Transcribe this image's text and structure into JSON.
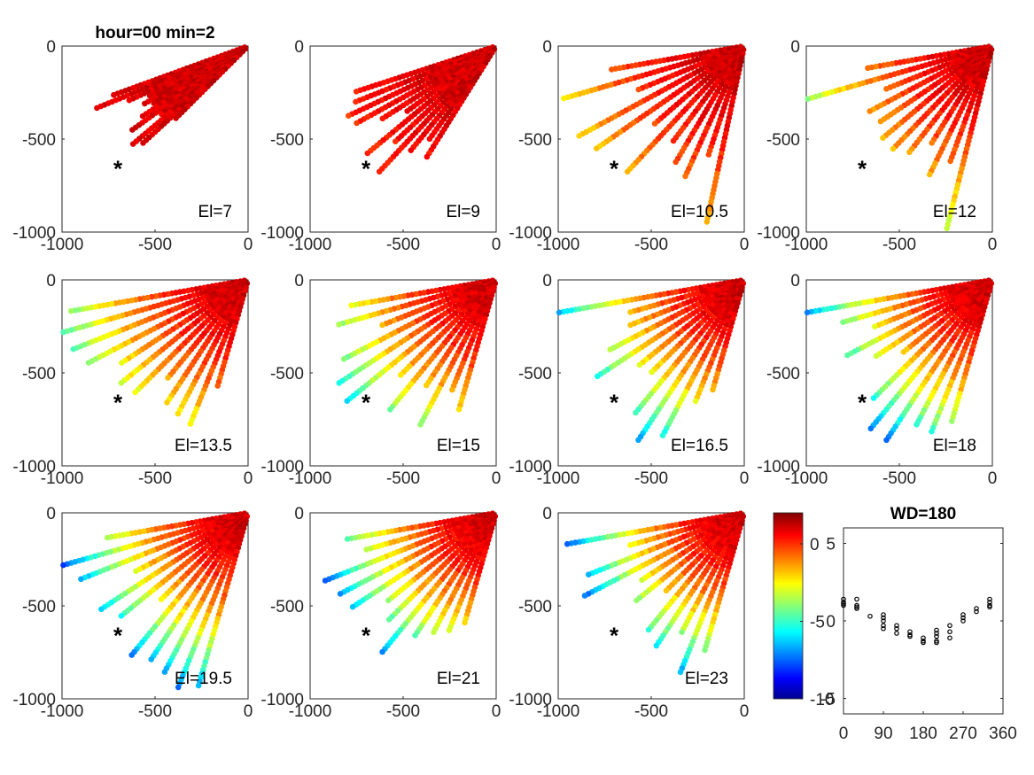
{
  "figure": {
    "title": "hour=00 min=2"
  },
  "chart_data": [
    {
      "type": "scatter",
      "description": "Radial scan scatter maps, one per elevation angle, colored by value",
      "xlim": [
        -1000,
        0
      ],
      "ylim": [
        -1000,
        0
      ],
      "xticks": [
        "-1000",
        "-500",
        "0"
      ],
      "yticks": [
        "0",
        "-500",
        "-1000"
      ],
      "marker": {
        "label": "*",
        "x": -700,
        "y": -660
      },
      "panels": [
        {
          "annotation": "El=7",
          "elevation": 7,
          "max_range": 860,
          "angle_span": [
            20,
            45
          ],
          "gradient": 0.05
        },
        {
          "annotation": "El=9",
          "elevation": 9,
          "max_range": 1000,
          "angle_span": [
            18,
            58
          ],
          "gradient": 0.15
        },
        {
          "annotation": "El=10.5",
          "elevation": 10.5,
          "max_range": 1000,
          "angle_span": [
            10,
            78
          ],
          "gradient": 0.35
        },
        {
          "annotation": "El=12",
          "elevation": 12,
          "max_range": 1000,
          "angle_span": [
            10,
            76
          ],
          "gradient": 0.5
        },
        {
          "annotation": "El=13.5",
          "elevation": 13.5,
          "max_range": 1000,
          "angle_span": [
            10,
            74
          ],
          "gradient": 0.6
        },
        {
          "annotation": "El=15",
          "elevation": 15,
          "max_range": 1000,
          "angle_span": [
            10,
            74
          ],
          "gradient": 0.7
        },
        {
          "annotation": "El=16.5",
          "elevation": 16.5,
          "max_range": 1000,
          "angle_span": [
            10,
            74
          ],
          "gradient": 0.8
        },
        {
          "annotation": "El=18",
          "elevation": 18,
          "max_range": 1000,
          "angle_span": [
            10,
            74
          ],
          "gradient": 0.85
        },
        {
          "annotation": "El=19.5",
          "elevation": 19.5,
          "max_range": 1000,
          "angle_span": [
            10,
            74
          ],
          "gradient": 0.9
        },
        {
          "annotation": "El=21",
          "elevation": 21,
          "max_range": 1000,
          "angle_span": [
            10,
            74
          ],
          "gradient": 0.95
        },
        {
          "annotation": "El=23",
          "elevation": 23,
          "max_range": 1000,
          "angle_span": [
            10,
            74
          ],
          "gradient": 1.0
        }
      ]
    },
    {
      "type": "heatmap",
      "description": "Colorbar (jet colormap)",
      "clim": [
        -10,
        2
      ],
      "ticks": [
        "0",
        "-5",
        "-10"
      ],
      "tick_values": [
        0,
        -5,
        -10
      ]
    },
    {
      "type": "scatter",
      "title": "WD=180",
      "xlim": [
        0,
        360
      ],
      "ylim": [
        -6,
        6
      ],
      "xticks": [
        "0",
        "90",
        "180",
        "270",
        "360"
      ],
      "xtick_values": [
        0,
        90,
        180,
        270,
        360
      ],
      "yticks": [
        "5",
        "0",
        "-5"
      ],
      "ytick_values": [
        5,
        0,
        -5
      ],
      "marker": "open-circle",
      "points": [
        {
          "x": 0,
          "y": [
            1.4,
            1.2,
            1.1,
            1.0
          ]
        },
        {
          "x": 30,
          "y": [
            1.4,
            1.0,
            0.9,
            0.8
          ]
        },
        {
          "x": 60,
          "y": [
            0.3
          ]
        },
        {
          "x": 90,
          "y": [
            0.4,
            0.2,
            0.0,
            -0.3,
            -0.5
          ]
        },
        {
          "x": 120,
          "y": [
            -0.3,
            -0.5,
            -0.8
          ]
        },
        {
          "x": 150,
          "y": [
            -0.7,
            -0.9,
            -1.0
          ]
        },
        {
          "x": 180,
          "y": [
            -1.1,
            -1.3,
            -1.4
          ]
        },
        {
          "x": 210,
          "y": [
            -0.6,
            -0.8,
            -1.0,
            -1.3,
            -1.4
          ]
        },
        {
          "x": 240,
          "y": [
            -0.3,
            -0.7,
            -1.1
          ]
        },
        {
          "x": 270,
          "y": [
            0.4,
            0.2,
            0.0
          ]
        },
        {
          "x": 300,
          "y": [
            0.8,
            0.6
          ]
        },
        {
          "x": 330,
          "y": [
            1.4,
            1.2,
            1.0,
            0.9
          ]
        }
      ]
    }
  ]
}
